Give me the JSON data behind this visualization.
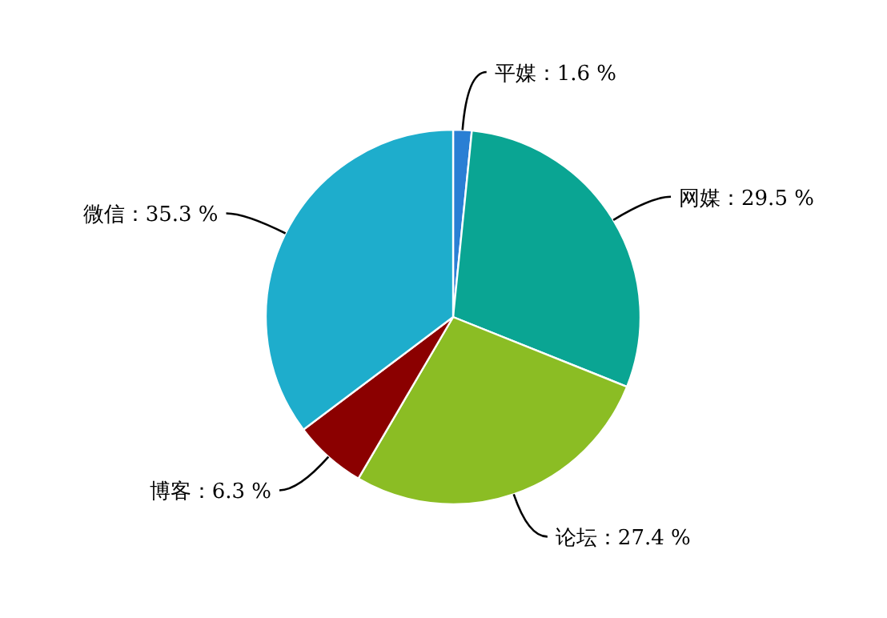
{
  "chart_data": {
    "type": "pie",
    "categories": [
      "平媒",
      "网媒",
      "论坛",
      "博客",
      "微信"
    ],
    "values": [
      1.6,
      29.5,
      27.4,
      6.3,
      35.3
    ],
    "colors": [
      "#2a7fd4",
      "#0aa593",
      "#8bbd24",
      "#8b0000",
      "#1eadcc"
    ],
    "value_labels": [
      "：1.6 %",
      "：29.5 %",
      "：27.4 %",
      "：6.3 %",
      "：35.3 %"
    ]
  }
}
